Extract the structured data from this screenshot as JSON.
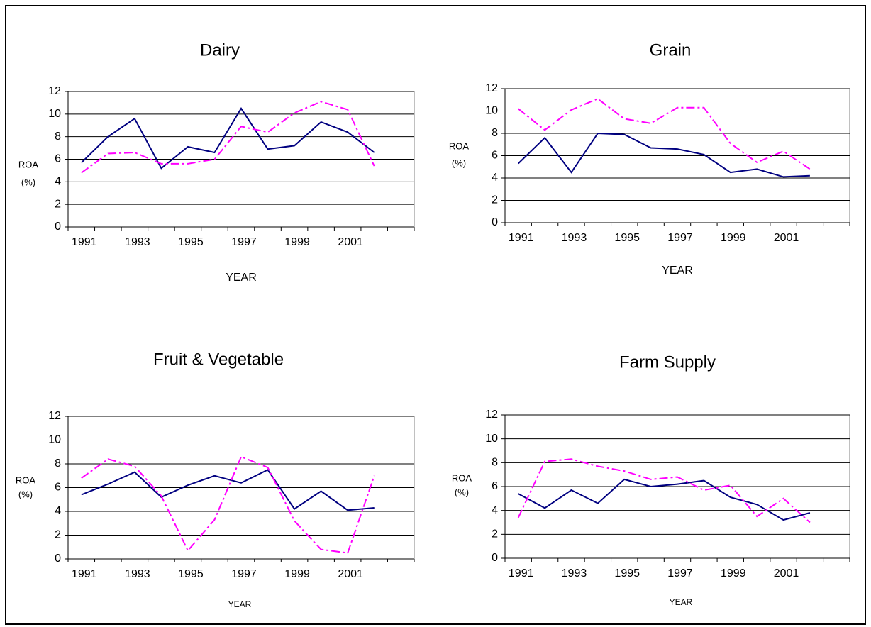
{
  "chart_data": [
    {
      "type": "line",
      "title": "Dairy",
      "ylabel_lines": [
        "ROA",
        "(%)"
      ],
      "xlabel": "YEAR",
      "categories": [
        "1991",
        null,
        "1993",
        null,
        "1995",
        null,
        "1997",
        null,
        "1999",
        null,
        "2001",
        null,
        null
      ],
      "ylim": [
        0,
        12
      ],
      "yticks": [
        0,
        2,
        4,
        6,
        8,
        10,
        12
      ],
      "grid": true,
      "series": [
        {
          "color": "#000080",
          "dash": "solid",
          "values": [
            5.7,
            8.0,
            9.6,
            5.2,
            7.1,
            6.6,
            10.5,
            6.9,
            7.2,
            9.3,
            8.4,
            6.6,
            null
          ]
        },
        {
          "color": "#ff00ff",
          "dash": "dash-dot",
          "values": [
            4.8,
            6.5,
            6.6,
            5.6,
            5.6,
            6.0,
            8.9,
            8.4,
            10.1,
            11.1,
            10.4,
            5.4,
            null
          ]
        }
      ]
    },
    {
      "type": "line",
      "title": "Grain",
      "ylabel_lines": [
        "ROA",
        "(%)"
      ],
      "xlabel": "YEAR",
      "categories": [
        "1991",
        null,
        "1993",
        null,
        "1995",
        null,
        "1997",
        null,
        "1999",
        null,
        "2001",
        null,
        null
      ],
      "ylim": [
        0,
        12
      ],
      "yticks": [
        0,
        2,
        4,
        6,
        8,
        10,
        12
      ],
      "grid": true,
      "series": [
        {
          "color": "#000080",
          "dash": "solid",
          "values": [
            5.3,
            7.6,
            4.5,
            8.0,
            7.9,
            6.7,
            6.6,
            6.1,
            4.5,
            4.8,
            4.1,
            4.2,
            null
          ]
        },
        {
          "color": "#ff00ff",
          "dash": "dash-dot",
          "values": [
            10.2,
            8.3,
            10.1,
            11.1,
            9.3,
            8.9,
            10.3,
            10.3,
            7.1,
            5.4,
            6.4,
            4.8,
            null
          ]
        }
      ]
    },
    {
      "type": "line",
      "title": "Fruit & Vegetable",
      "ylabel_lines": [
        "ROA",
        "(%)"
      ],
      "xlabel": "YEAR",
      "categories": [
        "1991",
        null,
        "1993",
        null,
        "1995",
        null,
        "1997",
        null,
        "1999",
        null,
        "2001",
        null,
        null
      ],
      "ylim": [
        0,
        12
      ],
      "yticks": [
        0,
        2,
        4,
        6,
        8,
        10,
        12
      ],
      "grid": true,
      "series": [
        {
          "color": "#000080",
          "dash": "solid",
          "values": [
            5.4,
            6.3,
            7.3,
            5.2,
            6.2,
            7.0,
            6.4,
            7.5,
            4.2,
            5.7,
            4.1,
            4.3,
            null
          ]
        },
        {
          "color": "#ff00ff",
          "dash": "dash-dot",
          "values": [
            6.8,
            8.4,
            7.8,
            5.3,
            0.7,
            3.3,
            8.6,
            7.7,
            3.2,
            0.8,
            0.5,
            7.0,
            null
          ]
        }
      ]
    },
    {
      "type": "line",
      "title": "Farm Supply",
      "ylabel_lines": [
        "ROA",
        "(%)"
      ],
      "xlabel": "YEAR",
      "categories": [
        "1991",
        null,
        "1993",
        null,
        "1995",
        null,
        "1997",
        null,
        "1999",
        null,
        "2001",
        null,
        null
      ],
      "ylim": [
        0,
        12
      ],
      "yticks": [
        0,
        2,
        4,
        6,
        8,
        10,
        12
      ],
      "grid": true,
      "series": [
        {
          "color": "#000080",
          "dash": "solid",
          "values": [
            5.4,
            4.2,
            5.7,
            4.6,
            6.6,
            6.0,
            6.2,
            6.5,
            5.1,
            4.5,
            3.2,
            3.8,
            null
          ]
        },
        {
          "color": "#ff00ff",
          "dash": "dash-dot",
          "values": [
            3.4,
            8.1,
            8.3,
            7.7,
            7.3,
            6.6,
            6.8,
            5.7,
            6.1,
            3.5,
            5.0,
            3.0,
            null
          ]
        }
      ]
    }
  ]
}
